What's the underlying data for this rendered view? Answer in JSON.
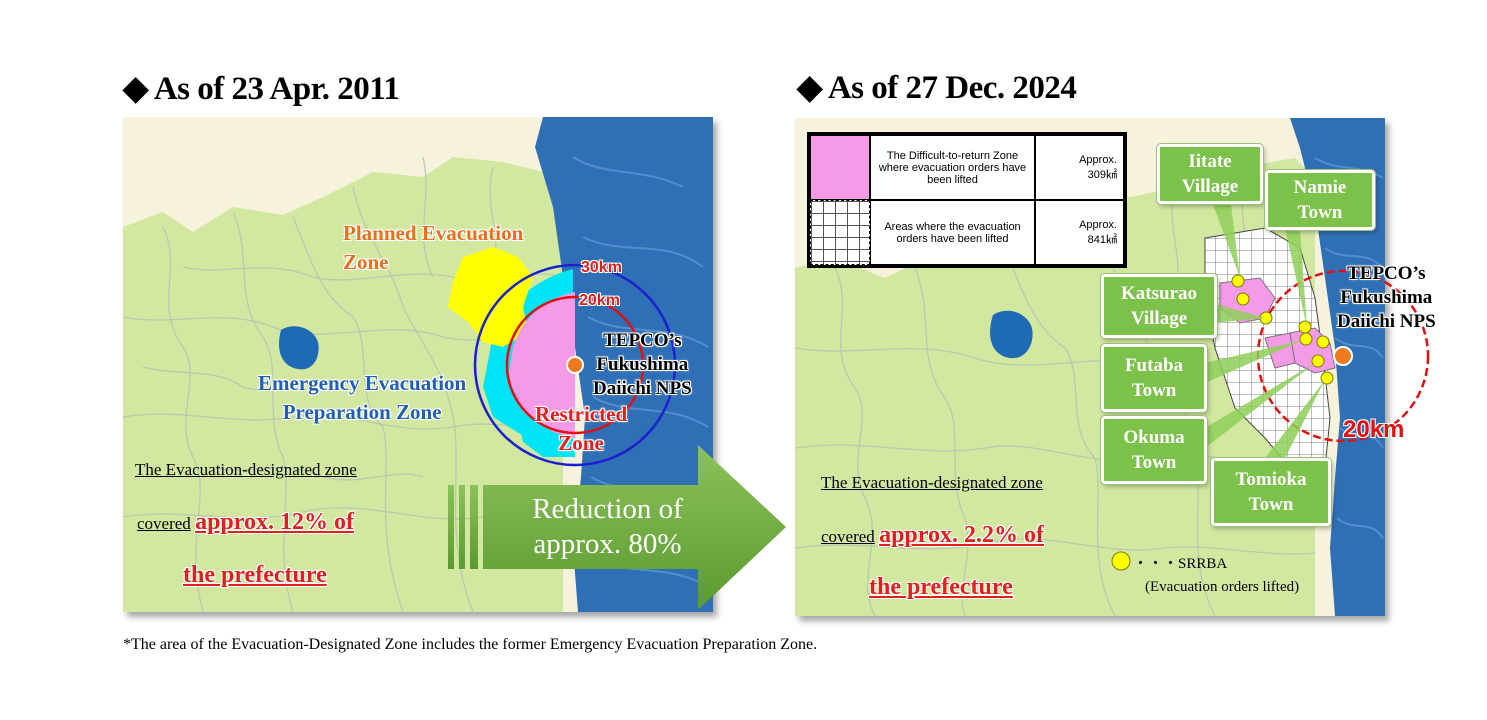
{
  "left": {
    "heading": "As of 23 Apr. 2011",
    "labels": {
      "planned_evacuation": [
        "Planned Evacuation",
        "Zone"
      ],
      "emergency_evacuation": [
        "Emergency Evacuation",
        "Preparation Zone"
      ],
      "restricted": [
        "Restricted",
        "Zone"
      ],
      "km30": "30km",
      "km20": "20km",
      "nps": [
        "TEPCO’s",
        "Fukushima",
        "Daiichi NPS"
      ]
    },
    "coverage": {
      "line1": "The Evacuation-designated zone",
      "covered": "covered",
      "amount": "approx. 12% of",
      "rest": "the prefecture"
    },
    "colors": {
      "planned": "#ffff00",
      "emergency_ring": "#00e5f5",
      "restricted": "#f59ae6",
      "land": "#d2e7a0",
      "sea": "#2f6fb5"
    }
  },
  "arrow": {
    "line1": "Reduction of",
    "line2": "approx. 80%",
    "color": "#6aa83c"
  },
  "right": {
    "heading": "As of 27 Dec. 2024",
    "legend": {
      "rows": [
        {
          "label": "The Difficult-to-return Zone where evacuation orders have been lifted",
          "amount_label": "Approx.",
          "amount": "309㎢",
          "swatch": "pink"
        },
        {
          "label": "Areas where the evacuation orders have been lifted",
          "amount_label": "Approx.",
          "amount": "841㎢",
          "swatch": "grid"
        }
      ]
    },
    "towns": {
      "iitate": [
        "Iitate",
        "Village"
      ],
      "namie": [
        "Namie",
        "Town"
      ],
      "katsurao": [
        "Katsurao",
        "Village"
      ],
      "futaba": [
        "Futaba",
        "Town"
      ],
      "okuma": [
        "Okuma",
        "Town"
      ],
      "tomioka": [
        "Tomioka",
        "Town"
      ]
    },
    "nps": [
      "TEPCO’s",
      "Fukushima",
      "Daiichi NPS"
    ],
    "km20": "20km",
    "coverage": {
      "line1": "The Evacuation-designated zone",
      "covered": "covered",
      "amount": "approx. 2.2% of",
      "rest": "the prefecture"
    },
    "srrba": {
      "line1": "・・・SRRBA",
      "line2": "(Evacuation orders lifted)"
    }
  },
  "footnote": "*The area of the Evacuation-Designated Zone includes the former Emergency Evacuation Preparation Zone."
}
